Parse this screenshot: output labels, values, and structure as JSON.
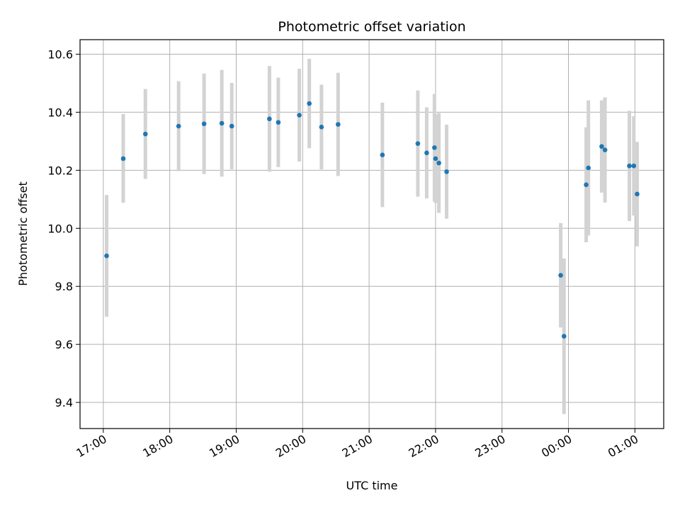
{
  "chart_data": {
    "type": "scatter",
    "title": "Photometric offset variation",
    "xlabel": "UTC time",
    "ylabel": "Photometric offset",
    "grid": true,
    "legend": "none",
    "colors": {
      "point": "#1f77b4",
      "errorbar": "#d3d3d3",
      "grid": "#b0b0b0"
    },
    "x_ticks": [
      "17:00",
      "18:00",
      "19:00",
      "20:00",
      "21:00",
      "22:00",
      "23:00",
      "00:00",
      "01:00"
    ],
    "y_ticks": [
      "9.4",
      "9.6",
      "9.8",
      "10.0",
      "10.2",
      "10.4",
      "10.6"
    ],
    "xlim": [
      "16:39",
      "01:26"
    ],
    "ylim": [
      9.31,
      10.65
    ],
    "points": [
      {
        "x": "17:03",
        "y": 9.905,
        "yerr_low": 9.695,
        "yerr_high": 10.115
      },
      {
        "x": "17:18",
        "y": 10.24,
        "yerr_low": 10.088,
        "yerr_high": 10.394
      },
      {
        "x": "17:38",
        "y": 10.325,
        "yerr_low": 10.17,
        "yerr_high": 10.48
      },
      {
        "x": "18:08",
        "y": 10.352,
        "yerr_low": 10.197,
        "yerr_high": 10.507
      },
      {
        "x": "18:31",
        "y": 10.36,
        "yerr_low": 10.187,
        "yerr_high": 10.533
      },
      {
        "x": "18:47",
        "y": 10.362,
        "yerr_low": 10.178,
        "yerr_high": 10.546
      },
      {
        "x": "18:56",
        "y": 10.352,
        "yerr_low": 10.203,
        "yerr_high": 10.501
      },
      {
        "x": "19:30",
        "y": 10.377,
        "yerr_low": 10.195,
        "yerr_high": 10.559
      },
      {
        "x": "19:38",
        "y": 10.365,
        "yerr_low": 10.211,
        "yerr_high": 10.519
      },
      {
        "x": "19:57",
        "y": 10.39,
        "yerr_low": 10.23,
        "yerr_high": 10.55
      },
      {
        "x": "20:06",
        "y": 10.43,
        "yerr_low": 10.276,
        "yerr_high": 10.584
      },
      {
        "x": "20:17",
        "y": 10.349,
        "yerr_low": 10.203,
        "yerr_high": 10.495
      },
      {
        "x": "20:32",
        "y": 10.358,
        "yerr_low": 10.18,
        "yerr_high": 10.536
      },
      {
        "x": "21:12",
        "y": 10.253,
        "yerr_low": 10.073,
        "yerr_high": 10.433
      },
      {
        "x": "21:44",
        "y": 10.292,
        "yerr_low": 10.109,
        "yerr_high": 10.475
      },
      {
        "x": "21:52",
        "y": 10.26,
        "yerr_low": 10.103,
        "yerr_high": 10.417
      },
      {
        "x": "21:59",
        "y": 10.278,
        "yerr_low": 10.093,
        "yerr_high": 10.463
      },
      {
        "x": "22:00",
        "y": 10.24,
        "yerr_low": 10.087,
        "yerr_high": 10.393
      },
      {
        "x": "22:03",
        "y": 10.225,
        "yerr_low": 10.053,
        "yerr_high": 10.397
      },
      {
        "x": "22:10",
        "y": 10.195,
        "yerr_low": 10.033,
        "yerr_high": 10.357
      },
      {
        "x": "23:53",
        "y": 9.838,
        "yerr_low": 9.658,
        "yerr_high": 10.018
      },
      {
        "x": "23:56",
        "y": 9.628,
        "yerr_low": 9.36,
        "yerr_high": 9.896
      },
      {
        "x": "00:16",
        "y": 10.15,
        "yerr_low": 9.952,
        "yerr_high": 10.348
      },
      {
        "x": "00:18",
        "y": 10.208,
        "yerr_low": 9.975,
        "yerr_high": 10.441
      },
      {
        "x": "00:30",
        "y": 10.282,
        "yerr_low": 10.123,
        "yerr_high": 10.441
      },
      {
        "x": "00:33",
        "y": 10.27,
        "yerr_low": 10.089,
        "yerr_high": 10.451
      },
      {
        "x": "00:55",
        "y": 10.215,
        "yerr_low": 10.025,
        "yerr_high": 10.405
      },
      {
        "x": "00:59",
        "y": 10.215,
        "yerr_low": 10.044,
        "yerr_high": 10.386
      },
      {
        "x": "01:02",
        "y": 10.118,
        "yerr_low": 9.938,
        "yerr_high": 10.298
      }
    ]
  }
}
